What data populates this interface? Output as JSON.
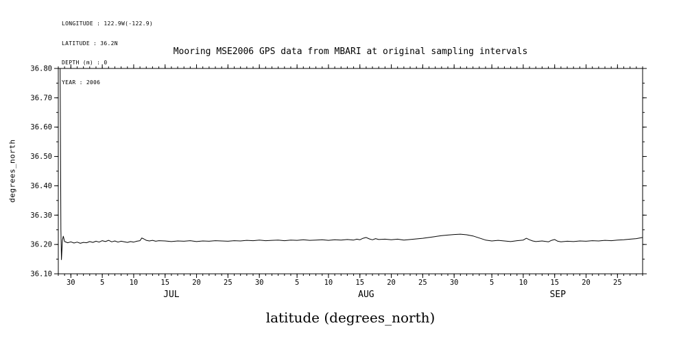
{
  "header": {
    "lines": [
      "LONGITUDE : 122.9W(-122.9)",
      "LATITUDE : 36.2N",
      "DEPTH (m) : 0",
      "YEAR : 2006"
    ]
  },
  "chart_data": {
    "type": "line",
    "title": "Mooring MSE2006 GPS data from MBARI at original sampling intervals",
    "xlabel": "latitude (degrees_north)",
    "ylabel": "degrees_north",
    "background": "#ffffff",
    "line_color": "#000000",
    "grid": false,
    "legend": false,
    "xlim": [
      0,
      93
    ],
    "ylim": [
      36.1,
      36.8
    ],
    "x_units": "days from start of record (late JUN through SEP 2006)",
    "x_minor_step": 1,
    "y_minor_step": 0.05,
    "yticks": [
      "36.10",
      "36.20",
      "36.30",
      "36.40",
      "36.50",
      "36.60",
      "36.70",
      "36.80"
    ],
    "xticks": [
      {
        "x": 2,
        "label": "30"
      },
      {
        "x": 7,
        "label": "5"
      },
      {
        "x": 12,
        "label": "10"
      },
      {
        "x": 17,
        "label": "15"
      },
      {
        "x": 22,
        "label": "20"
      },
      {
        "x": 27,
        "label": "25"
      },
      {
        "x": 32,
        "label": "30"
      },
      {
        "x": 38,
        "label": "5"
      },
      {
        "x": 43,
        "label": "10"
      },
      {
        "x": 48,
        "label": "15"
      },
      {
        "x": 53,
        "label": "20"
      },
      {
        "x": 58,
        "label": "25"
      },
      {
        "x": 63,
        "label": "30"
      },
      {
        "x": 69,
        "label": "5"
      },
      {
        "x": 74,
        "label": "10"
      },
      {
        "x": 79,
        "label": "15"
      },
      {
        "x": 84,
        "label": "20"
      },
      {
        "x": 89,
        "label": "25"
      }
    ],
    "month_labels": [
      {
        "x": 18,
        "label": "JUL"
      },
      {
        "x": 49,
        "label": "AUG"
      },
      {
        "x": 79.5,
        "label": "SEP"
      }
    ],
    "series": [
      {
        "name": "latitude",
        "points": [
          [
            0.3,
            36.8
          ],
          [
            0.35,
            36.55
          ],
          [
            0.42,
            36.25
          ],
          [
            0.5,
            36.148
          ],
          [
            0.65,
            36.215
          ],
          [
            0.8,
            36.228
          ],
          [
            1,
            36.21
          ],
          [
            1.5,
            36.206
          ],
          [
            2,
            36.209
          ],
          [
            2.5,
            36.205
          ],
          [
            3,
            36.208
          ],
          [
            3.5,
            36.204
          ],
          [
            4,
            36.207
          ],
          [
            4.5,
            36.206
          ],
          [
            5,
            36.21
          ],
          [
            5.5,
            36.207
          ],
          [
            6,
            36.211
          ],
          [
            6.5,
            36.208
          ],
          [
            7,
            36.213
          ],
          [
            7.5,
            36.21
          ],
          [
            8,
            36.214
          ],
          [
            8.5,
            36.209
          ],
          [
            9,
            36.212
          ],
          [
            9.5,
            36.208
          ],
          [
            10,
            36.211
          ],
          [
            10.5,
            36.209
          ],
          [
            11,
            36.207
          ],
          [
            11.5,
            36.21
          ],
          [
            12,
            36.208
          ],
          [
            12.5,
            36.211
          ],
          [
            13,
            36.213
          ],
          [
            13.3,
            36.222
          ],
          [
            13.6,
            36.219
          ],
          [
            14,
            36.214
          ],
          [
            14.5,
            36.212
          ],
          [
            15,
            36.214
          ],
          [
            15.5,
            36.211
          ],
          [
            16,
            36.213
          ],
          [
            17,
            36.212
          ],
          [
            18,
            36.21
          ],
          [
            19,
            36.212
          ],
          [
            20,
            36.211
          ],
          [
            21,
            36.213
          ],
          [
            22,
            36.21
          ],
          [
            23,
            36.212
          ],
          [
            24,
            36.211
          ],
          [
            25,
            36.213
          ],
          [
            26,
            36.212
          ],
          [
            27,
            36.211
          ],
          [
            28,
            36.213
          ],
          [
            29,
            36.212
          ],
          [
            30,
            36.214
          ],
          [
            31,
            36.213
          ],
          [
            32,
            36.215
          ],
          [
            33,
            36.213
          ],
          [
            34,
            36.214
          ],
          [
            35,
            36.215
          ],
          [
            36,
            36.213
          ],
          [
            37,
            36.215
          ],
          [
            38,
            36.214
          ],
          [
            39,
            36.216
          ],
          [
            40,
            36.214
          ],
          [
            41,
            36.215
          ],
          [
            42,
            36.216
          ],
          [
            43,
            36.214
          ],
          [
            44,
            36.216
          ],
          [
            45,
            36.215
          ],
          [
            46,
            36.217
          ],
          [
            47,
            36.215
          ],
          [
            47.5,
            36.218
          ],
          [
            48,
            36.216
          ],
          [
            48.5,
            36.221
          ],
          [
            49,
            36.224
          ],
          [
            49.5,
            36.219
          ],
          [
            50,
            36.216
          ],
          [
            50.5,
            36.22
          ],
          [
            51,
            36.217
          ],
          [
            52,
            36.218
          ],
          [
            53,
            36.216
          ],
          [
            54,
            36.218
          ],
          [
            55,
            36.215
          ],
          [
            56,
            36.217
          ],
          [
            57,
            36.219
          ],
          [
            58,
            36.221
          ],
          [
            59,
            36.224
          ],
          [
            60,
            36.227
          ],
          [
            61,
            36.23
          ],
          [
            62,
            36.232
          ],
          [
            63,
            36.234
          ],
          [
            64,
            36.235
          ],
          [
            65,
            36.233
          ],
          [
            66,
            36.229
          ],
          [
            67,
            36.222
          ],
          [
            68,
            36.215
          ],
          [
            69,
            36.212
          ],
          [
            70,
            36.214
          ],
          [
            71,
            36.212
          ],
          [
            72,
            36.21
          ],
          [
            73,
            36.213
          ],
          [
            74,
            36.215
          ],
          [
            74.5,
            36.221
          ],
          [
            75,
            36.216
          ],
          [
            75.5,
            36.212
          ],
          [
            76,
            36.21
          ],
          [
            77,
            36.212
          ],
          [
            78,
            36.209
          ],
          [
            78.5,
            36.214
          ],
          [
            79,
            36.217
          ],
          [
            79.5,
            36.211
          ],
          [
            80,
            36.209
          ],
          [
            81,
            36.211
          ],
          [
            82,
            36.21
          ],
          [
            83,
            36.212
          ],
          [
            84,
            36.211
          ],
          [
            85,
            36.213
          ],
          [
            86,
            36.212
          ],
          [
            87,
            36.214
          ],
          [
            88,
            36.213
          ],
          [
            89,
            36.215
          ],
          [
            90,
            36.216
          ],
          [
            91,
            36.218
          ],
          [
            92,
            36.22
          ],
          [
            93,
            36.224
          ]
        ]
      }
    ]
  }
}
